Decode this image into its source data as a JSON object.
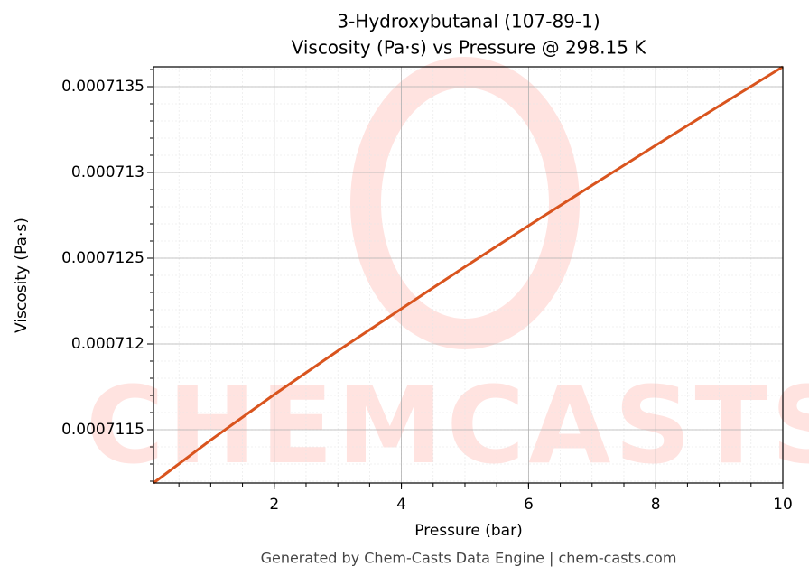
{
  "chart_data": {
    "type": "line",
    "title": "3-Hydroxybutanal (107-89-1)",
    "subtitle": "Viscosity (Pa·s) vs Pressure @ 298.15 K",
    "x_label": "Pressure (bar)",
    "y_label": "Viscosity (Pa·s)",
    "footer": "Generated by Chem-Casts Data Engine | chem-casts.com",
    "watermark": "CHEMCASTS",
    "x": [
      0.1,
      1,
      2,
      3,
      4,
      5,
      6,
      7,
      8,
      9,
      10
    ],
    "series": [
      {
        "name": "Viscosity",
        "color": "#d9541e",
        "values": [
          0.0007111895,
          0.00071144,
          0.0007117053,
          0.00071196,
          0.0007122053,
          0.00071245,
          0.0007126895,
          0.000712925,
          0.0007131579,
          0.000713388,
          0.0007136158
        ]
      }
    ],
    "xlim": [
      0.1,
      10
    ],
    "ylim": [
      0.0007111895,
      0.0007136158
    ],
    "xticks": [
      2,
      4,
      6,
      8,
      10
    ],
    "yticks": [
      0.0007115,
      0.000712,
      0.0007125,
      0.000713,
      0.0007135
    ],
    "grid": true
  }
}
